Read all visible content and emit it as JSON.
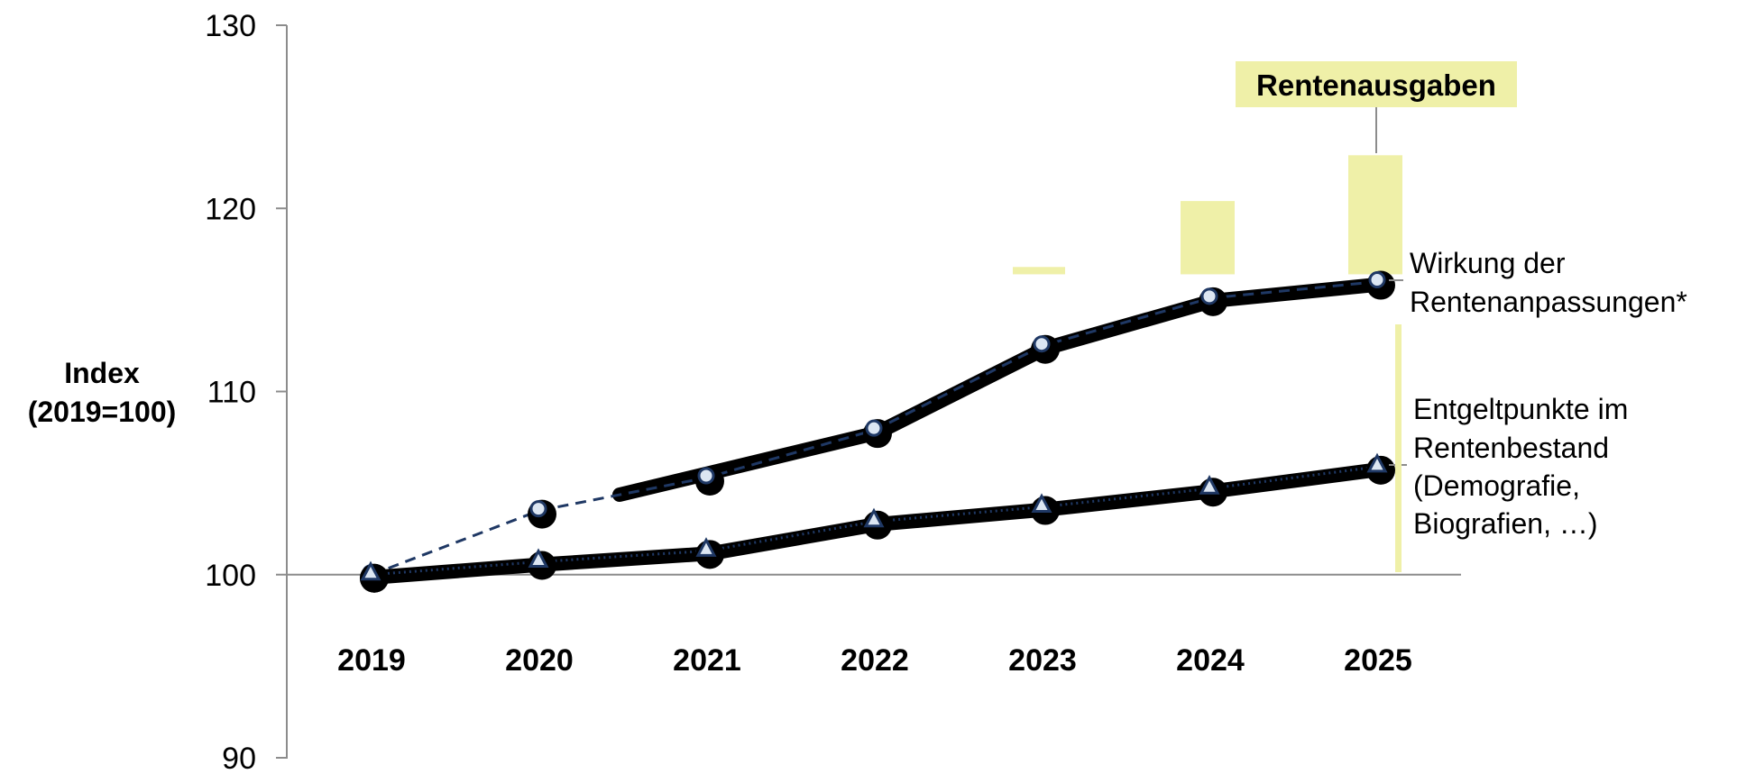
{
  "chart_data": {
    "type": "line",
    "categories": [
      "2019",
      "2020",
      "2021",
      "2022",
      "2023",
      "2024",
      "2025"
    ],
    "series": [
      {
        "name": "Wirkung der Rentenanpassungen*",
        "values": [
          100,
          103.5,
          105.3,
          107.9,
          112.5,
          115.1,
          116.0
        ],
        "marker": "circle",
        "line_style": "dashed"
      },
      {
        "name": "Entgeltpunkte im Rentenbestand (Demografie, Biografien, …)",
        "values": [
          100,
          100.7,
          101.3,
          102.9,
          103.7,
          104.7,
          105.9
        ],
        "marker": "triangle",
        "line_style": "dotted"
      }
    ],
    "stacked_bars": {
      "name": "Rentenausgaben",
      "categories": [
        "2023",
        "2024",
        "2025"
      ],
      "segments": [
        {
          "bottom": 116.4,
          "top": 116.8
        },
        {
          "bottom": 116.4,
          "top": 120.4
        },
        {
          "bottom": 116.4,
          "top": 122.9
        }
      ]
    },
    "ylabel_lines": [
      "Index",
      "(2019=100)"
    ],
    "xlabel": "",
    "ylim": [
      90,
      130
    ],
    "yticks": [
      90,
      100,
      110,
      120,
      130
    ],
    "baseline": 100,
    "legend_title": "Rentenausgaben",
    "annotation_lines": {
      "top": [
        "Wirkung der",
        "Rentenanpassungen*"
      ],
      "bottom": [
        "Entgeltpunkte im",
        "Rentenbestand",
        "(Demografie,",
        "Biografien, …)"
      ]
    },
    "grid": false,
    "colors": {
      "bar": "#eff0a8",
      "series_line": "#1f3864",
      "marker_fill": "#dce6f2",
      "marker_stroke": "#1f3864",
      "axis": "#8c8c8c"
    }
  }
}
